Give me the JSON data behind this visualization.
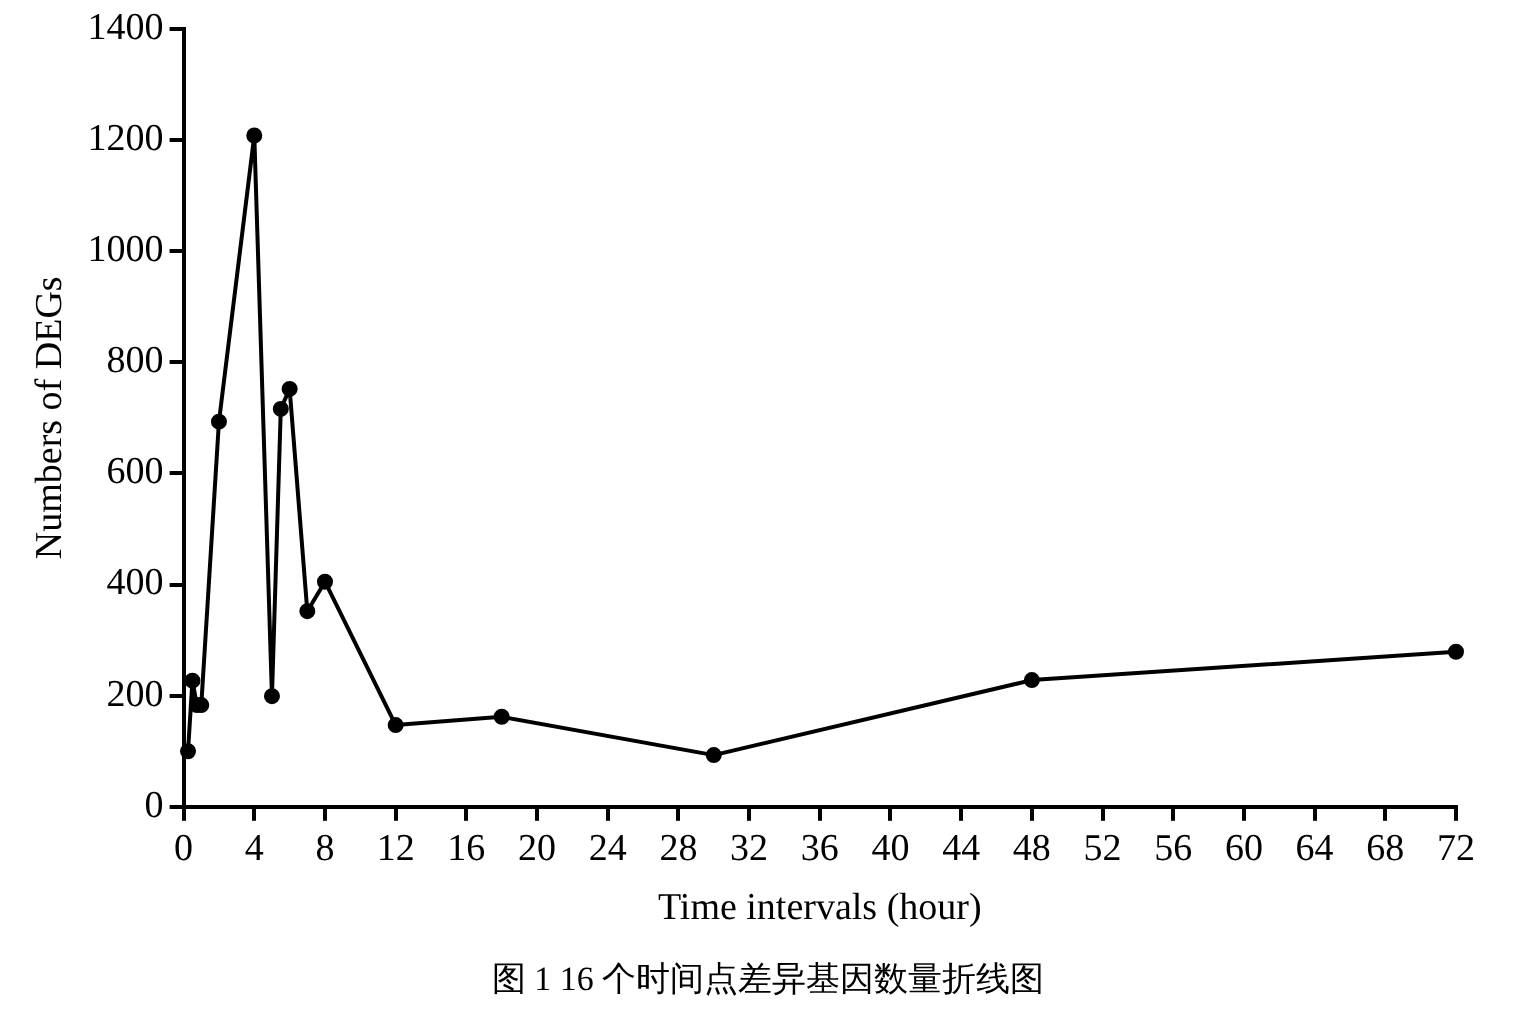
{
  "chart_data": {
    "type": "line",
    "xlabel": "Time intervals (hour)",
    "ylabel": "Numbers of DEGs",
    "annotations": [
      "图 1 16 个时间点差异基因数量折线图"
    ],
    "x": [
      0.25,
      0.5,
      0.75,
      1,
      2,
      4,
      5,
      5.5,
      6,
      7,
      8,
      12,
      18,
      30,
      48,
      72
    ],
    "series": [
      {
        "color": "#000000",
        "values": [
          100,
          227,
          183,
          183,
          693,
          1208,
          199,
          716,
          752,
          352,
          405,
          147,
          162,
          93,
          228,
          279
        ]
      }
    ],
    "xlim": [
      0,
      72
    ],
    "xticks": [
      0,
      4,
      8,
      12,
      16,
      20,
      24,
      28,
      32,
      36,
      40,
      44,
      48,
      52,
      56,
      60,
      64,
      68,
      72
    ],
    "ylim": [
      0,
      1400
    ],
    "yticks": [
      0,
      200,
      400,
      600,
      800,
      1000,
      1200,
      1400
    ],
    "grid": false,
    "legend": false,
    "marker": "circle",
    "line_style": "solid"
  }
}
